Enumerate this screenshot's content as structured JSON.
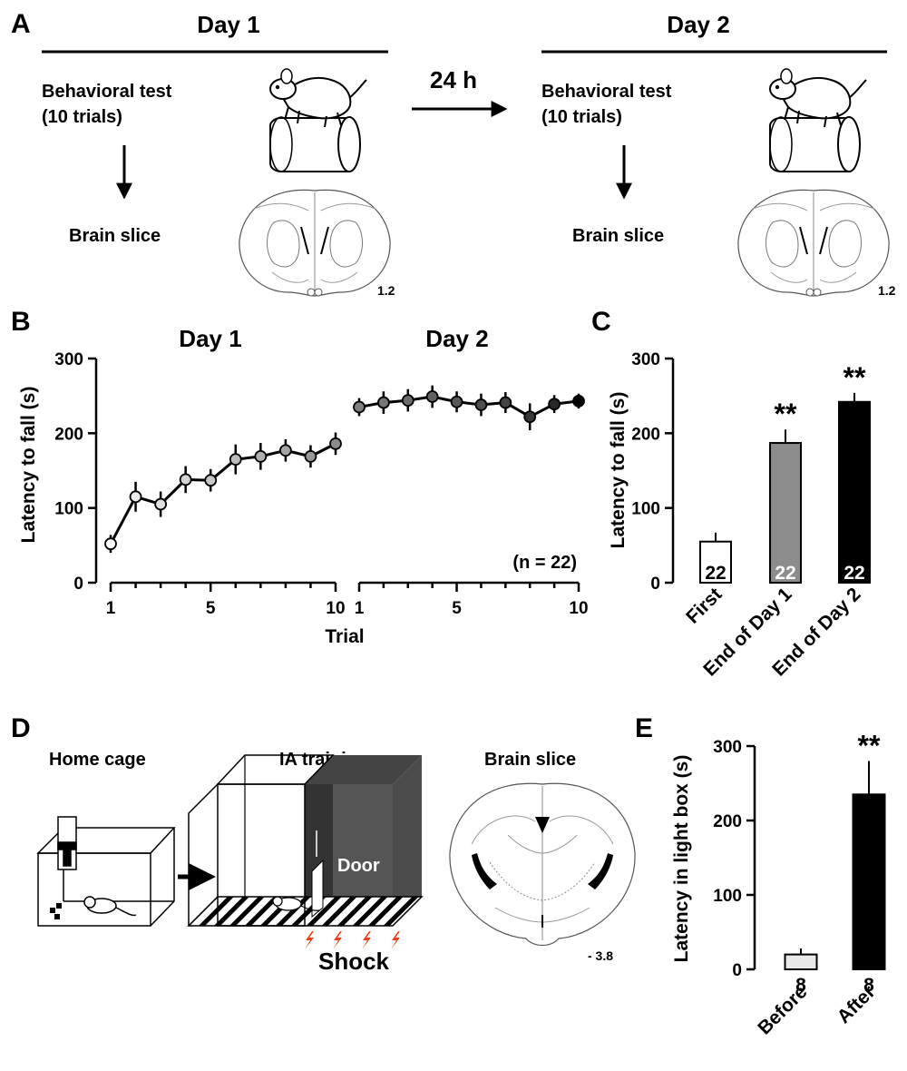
{
  "panel_labels": {
    "a": "A",
    "b": "B",
    "c": "C",
    "d": "D",
    "e": "E"
  },
  "panel_a": {
    "day1_title": "Day 1",
    "day2_title": "Day 2",
    "interval": "24 h",
    "test_line1": "Behavioral test",
    "test_line2": "(10 trials)",
    "slice_label": "Brain slice",
    "slice_coordinate": "1.2"
  },
  "panel_d": {
    "home_cage": "Home cage",
    "ia_training": "IA training",
    "brain_slice": "Brain slice",
    "door": "Door",
    "shock": "Shock",
    "slice_coordinate": "- 3.8",
    "shock_color": "#e8421c"
  },
  "chart_data": [
    {
      "id": "B",
      "type": "line",
      "title_left": "Day 1",
      "title_right": "Day 2",
      "xlabel": "Trial",
      "ylabel": "Latency to fall (s)",
      "ylim": [
        0,
        300
      ],
      "yticks": [
        "0",
        "100",
        "200",
        "300"
      ],
      "xticks": [
        "1",
        "5",
        "10"
      ],
      "annotation": "(n = 22)",
      "series": [
        {
          "name": "Day 1",
          "x": [
            1,
            2,
            3,
            4,
            5,
            6,
            7,
            8,
            9,
            10
          ],
          "values": [
            52,
            115,
            105,
            138,
            137,
            165,
            169,
            177,
            169,
            186
          ],
          "errors": [
            12,
            20,
            17,
            18,
            15,
            20,
            18,
            15,
            15,
            15
          ],
          "fills": [
            "#ffffff",
            "#ececec",
            "#e0e0e0",
            "#d4d4d4",
            "#c8c8c8",
            "#bcbcbc",
            "#b0b0b0",
            "#a4a4a4",
            "#989898",
            "#8c8c8c"
          ]
        },
        {
          "name": "Day 2",
          "x": [
            1,
            2,
            3,
            4,
            5,
            6,
            7,
            8,
            9,
            10
          ],
          "values": [
            235,
            241,
            244,
            249,
            242,
            238,
            241,
            222,
            239,
            243
          ],
          "errors": [
            12,
            15,
            15,
            15,
            14,
            15,
            14,
            18,
            12,
            10
          ],
          "fills": [
            "#808080",
            "#767676",
            "#6c6c6c",
            "#626262",
            "#585858",
            "#4e4e4e",
            "#444444",
            "#383838",
            "#282828",
            "#000000"
          ]
        }
      ]
    },
    {
      "id": "C",
      "type": "bar",
      "ylabel": "Latency to fall (s)",
      "ylim": [
        0,
        300
      ],
      "yticks": [
        "0",
        "100",
        "200",
        "300"
      ],
      "categories": [
        "First",
        "End of Day 1",
        "End of Day 2"
      ],
      "values": [
        55,
        187,
        242
      ],
      "errors": [
        12,
        18,
        12
      ],
      "n_labels": [
        "22",
        "22",
        "22"
      ],
      "significance": [
        "",
        "**",
        "**"
      ],
      "colors": [
        "#ffffff",
        "#8c8c8c",
        "#000000"
      ]
    },
    {
      "id": "E",
      "type": "bar",
      "ylabel": "Latency in light box (s)",
      "ylim": [
        0,
        300
      ],
      "yticks": [
        "0",
        "100",
        "200",
        "300"
      ],
      "categories": [
        "Before",
        "After"
      ],
      "values": [
        20,
        235
      ],
      "errors": [
        8,
        45
      ],
      "n_labels": [
        "8",
        "8"
      ],
      "significance": [
        "",
        "**"
      ],
      "colors": [
        "#e8e8e8",
        "#000000"
      ]
    }
  ]
}
